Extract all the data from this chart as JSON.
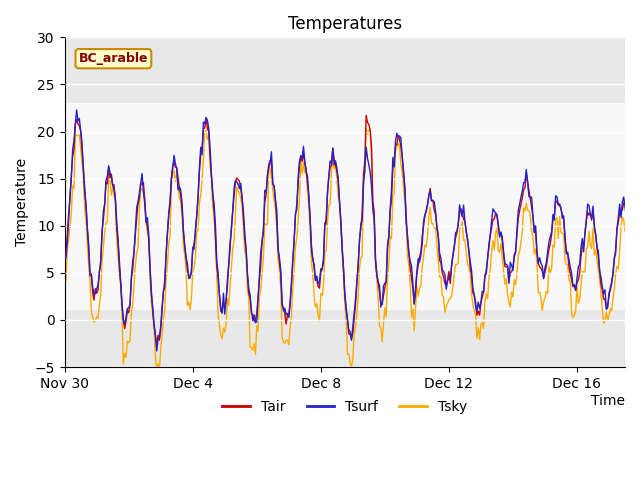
{
  "title": "Temperatures",
  "xlabel": "Time",
  "ylabel": "Temperature",
  "ylim": [
    -5,
    30
  ],
  "yticks": [
    -5,
    0,
    5,
    10,
    15,
    20,
    25,
    30
  ],
  "xtick_labels": [
    "Nov 30",
    "Dec 4",
    "Dec 8",
    "Dec 12",
    "Dec 16"
  ],
  "xtick_positions": [
    0,
    4,
    8,
    12,
    16
  ],
  "legend_labels": [
    "Tair",
    "Tsurf",
    "Tsky"
  ],
  "legend_colors": [
    "#cc0000",
    "#2222cc",
    "#ffaa00"
  ],
  "annotation_text": "BC_arable",
  "annotation_bg": "#ffffcc",
  "annotation_border": "#cc8800",
  "annotation_text_color": "#880000",
  "shaded_regions": [
    {
      "ymin": 23,
      "ymax": 30,
      "color": "#e8e8e8"
    },
    {
      "ymin": -5,
      "ymax": 1,
      "color": "#e8e8e8"
    }
  ],
  "ax_facecolor": "#f8f8f8",
  "grid_color": "#cccccc"
}
